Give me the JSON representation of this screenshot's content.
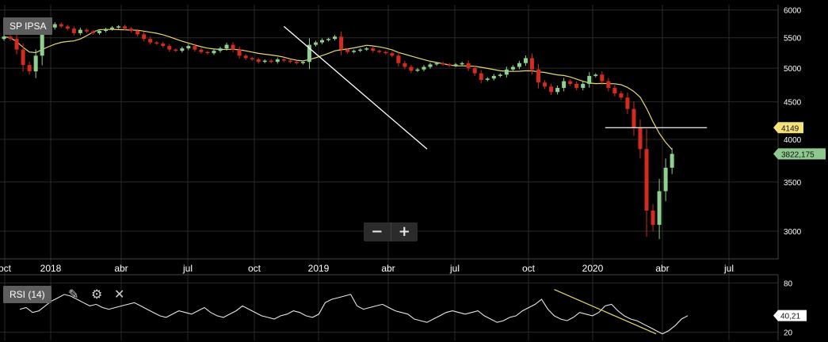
{
  "panel": {
    "symbol_label": "SP IPSA",
    "rsi_label": "RSI (14)",
    "zoom_out_label": "−",
    "zoom_in_label": "+",
    "icons": {
      "draw": "pencil-icon",
      "settings": "gear-icon",
      "close": "close-icon"
    },
    "colors": {
      "background": "#000000",
      "up": "#8fcf8f",
      "down": "#d42a20",
      "ma": "#e6d86a",
      "trend": "#ffffff",
      "grid": "#2a2a2a",
      "badge": "#5e5e5e"
    }
  },
  "chart_data": [
    {
      "type": "candlestick",
      "title": "SP IPSA",
      "x_ticks": [
        "2018",
        "abr",
        "jul",
        "oct",
        "2019",
        "abr",
        "jul",
        "oct",
        "2020",
        "abr",
        "jul"
      ],
      "x_tick_edge_label": "oct",
      "y_ticks": [
        6000,
        5500,
        5000,
        4500,
        4000,
        3500,
        3000
      ],
      "ylim": [
        2750,
        6100
      ],
      "scale": "log",
      "moving_average": true,
      "grid": true,
      "price_labels": [
        {
          "text": "4149",
          "value": 4149,
          "color": "#f5e27a"
        },
        {
          "text": "3822,175",
          "value": 3822.175,
          "color": "#8fc88f"
        }
      ],
      "horizontal_line": 4149,
      "trendline": {
        "from": {
          "x": 44.0,
          "y": 5700
        },
        "to": {
          "x": 66.5,
          "y": 3880
        }
      },
      "weekly_closes": [
        5520,
        5480,
        5300,
        5050,
        4950,
        5200,
        5600,
        5680,
        5740,
        5700,
        5660,
        5580,
        5640,
        5610,
        5580,
        5620,
        5650,
        5680,
        5700,
        5660,
        5620,
        5560,
        5480,
        5420,
        5400,
        5360,
        5300,
        5280,
        5320,
        5360,
        5300,
        5260,
        5240,
        5280,
        5320,
        5380,
        5300,
        5200,
        5160,
        5140,
        5100,
        5120,
        5100,
        5140,
        5120,
        5100,
        5080,
        5100,
        5380,
        5420,
        5460,
        5480,
        5520,
        5300,
        5260,
        5280,
        5300,
        5320,
        5280,
        5260,
        5240,
        5200,
        5080,
        5020,
        4960,
        4980,
        5020,
        5060,
        5080,
        5060,
        5040,
        5060,
        5080,
        5000,
        4920,
        4820,
        4840,
        4880,
        4900,
        4980,
        5020,
        5080,
        5160,
        4980,
        4780,
        4720,
        4640,
        4700,
        4800,
        4760,
        4700,
        4760,
        4880,
        4900,
        4800,
        4700,
        4620,
        4560,
        4400,
        4149,
        3880,
        3200,
        3060,
        3400,
        3660,
        3822
      ]
    },
    {
      "type": "line",
      "title": "RSI (14)",
      "y_ticks": [
        80,
        20
      ],
      "ylim": [
        10,
        90
      ],
      "value_label": {
        "text": "40,21",
        "value": 40.21
      },
      "trendline": {
        "from": {
          "x": 84,
          "y": 72
        },
        "to": {
          "x": 100,
          "y": 18
        }
      },
      "values": [
        48,
        50,
        44,
        46,
        52,
        58,
        62,
        66,
        64,
        60,
        56,
        52,
        54,
        50,
        48,
        50,
        52,
        54,
        56,
        52,
        48,
        44,
        40,
        38,
        42,
        46,
        44,
        42,
        46,
        50,
        44,
        40,
        38,
        42,
        46,
        52,
        48,
        44,
        40,
        38,
        36,
        40,
        42,
        46,
        44,
        40,
        38,
        42,
        56,
        60,
        62,
        64,
        66,
        52,
        48,
        50,
        52,
        54,
        50,
        46,
        44,
        42,
        36,
        34,
        32,
        36,
        40,
        44,
        46,
        44,
        42,
        44,
        46,
        40,
        36,
        32,
        34,
        38,
        40,
        46,
        50,
        54,
        60,
        48,
        40,
        36,
        34,
        38,
        44,
        42,
        40,
        44,
        52,
        54,
        46,
        40,
        36,
        34,
        30,
        26,
        22,
        18,
        22,
        28,
        36,
        40.21
      ]
    }
  ]
}
